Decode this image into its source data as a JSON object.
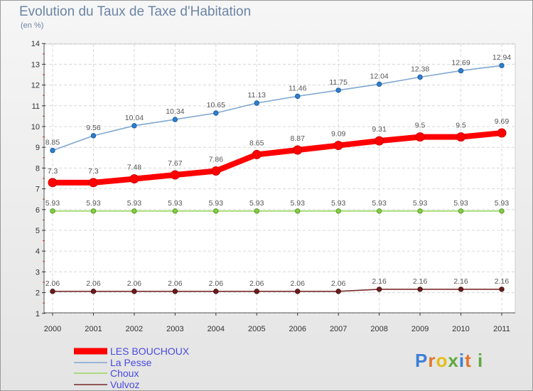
{
  "chart_data": {
    "type": "line",
    "title": "Evolution du Taux de Taxe d'Habitation",
    "subtitle": "(en %)",
    "xlabel": "",
    "ylabel": "",
    "x": [
      "2000",
      "2001",
      "2002",
      "2003",
      "2004",
      "2005",
      "2006",
      "2007",
      "2008",
      "2009",
      "2010",
      "2011"
    ],
    "yticks": [
      "1",
      "2",
      "3",
      "4",
      "5",
      "6",
      "7",
      "8",
      "9",
      "10",
      "11",
      "12",
      "13",
      "14"
    ],
    "ylim": [
      1,
      14
    ],
    "grid": true,
    "legend_position": "bottom-left",
    "series": [
      {
        "name": "LES BOUCHOUX",
        "color": "#ff0000",
        "values": [
          7.3,
          7.3,
          7.48,
          7.67,
          7.86,
          8.65,
          8.87,
          9.09,
          9.31,
          9.5,
          9.5,
          9.69
        ],
        "labels": [
          "7.3",
          "7.3",
          "7.48",
          "7.67",
          "7.86",
          "8.65",
          "8.87",
          "9.09",
          "9.31",
          "9.5",
          "9.5",
          "9.69"
        ]
      },
      {
        "name": "La Pesse",
        "color": "#7fa7d2",
        "values": [
          8.85,
          9.56,
          10.04,
          10.34,
          10.65,
          11.13,
          11.46,
          11.75,
          12.04,
          12.38,
          12.69,
          12.94
        ],
        "labels": [
          "8.85",
          "9.56",
          "10.04",
          "10.34",
          "10.65",
          "11.13",
          "11.46",
          "11.75",
          "12.04",
          "12.38",
          "12.69",
          "12.94"
        ]
      },
      {
        "name": "Choux",
        "color": "#99d65c",
        "values": [
          5.93,
          5.93,
          5.93,
          5.93,
          5.93,
          5.93,
          5.93,
          5.93,
          5.93,
          5.93,
          5.93,
          5.93
        ],
        "labels": [
          "5.93",
          "5.93",
          "5.93",
          "5.93",
          "5.93",
          "5.93",
          "5.93",
          "5.93",
          "5.93",
          "5.93",
          "5.93",
          "5.93"
        ]
      },
      {
        "name": "Vulvoz",
        "color": "#7a2a2a",
        "values": [
          2.06,
          2.06,
          2.06,
          2.06,
          2.06,
          2.06,
          2.06,
          2.06,
          2.16,
          2.16,
          2.16,
          2.16
        ],
        "labels": [
          "2.06",
          "2.06",
          "2.06",
          "2.06",
          "2.06",
          "2.06",
          "2.06",
          "2.06",
          "2.16",
          "2.16",
          "2.16",
          "2.16"
        ]
      }
    ]
  },
  "logo": {
    "text": "Proxiti",
    "letters": [
      "P",
      "r",
      "o",
      "x",
      "i",
      "t",
      "i"
    ]
  }
}
